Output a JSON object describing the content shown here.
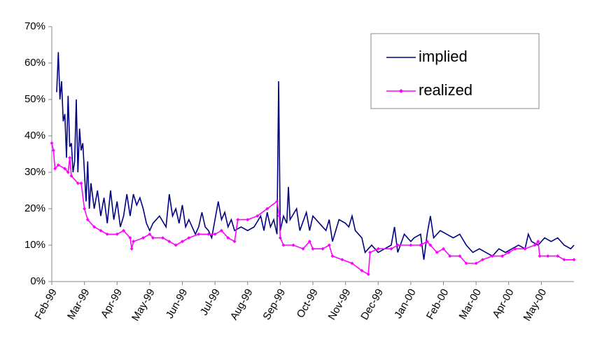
{
  "chart_data": {
    "type": "line",
    "xticks": [
      {
        "value": 0,
        "label": "Feb-99"
      },
      {
        "value": 1,
        "label": "Mar-99"
      },
      {
        "value": 2,
        "label": "Apr-99"
      },
      {
        "value": 3,
        "label": "May-99"
      },
      {
        "value": 4,
        "label": "Jun-99"
      },
      {
        "value": 5,
        "label": "Jul-99"
      },
      {
        "value": 6,
        "label": "Aug-99"
      },
      {
        "value": 7,
        "label": "Sep-99"
      },
      {
        "value": 8,
        "label": "Oct-99"
      },
      {
        "value": 9,
        "label": "Nov-99"
      },
      {
        "value": 10,
        "label": "Dec-99"
      },
      {
        "value": 11,
        "label": "Jan-00"
      },
      {
        "value": 12,
        "label": "Feb-00"
      },
      {
        "value": 13,
        "label": "Mar-00"
      },
      {
        "value": 14,
        "label": "Apr-00"
      },
      {
        "value": 15,
        "label": "May-00"
      }
    ],
    "xlim": [
      0,
      16
    ],
    "ylim": [
      0,
      70
    ],
    "yticks": [
      {
        "value": 0,
        "label": "0%"
      },
      {
        "value": 10,
        "label": "10%"
      },
      {
        "value": 20,
        "label": "20%"
      },
      {
        "value": 30,
        "label": "30%"
      },
      {
        "value": 40,
        "label": "40%"
      },
      {
        "value": 50,
        "label": "50%"
      },
      {
        "value": 60,
        "label": "60%"
      },
      {
        "value": 70,
        "label": "70%"
      }
    ],
    "legend": "top-right",
    "series": [
      {
        "name": "implied",
        "color": "#000080",
        "markers": false,
        "x": [
          0.15,
          0.2,
          0.25,
          0.3,
          0.35,
          0.4,
          0.45,
          0.5,
          0.55,
          0.6,
          0.65,
          0.7,
          0.75,
          0.8,
          0.85,
          0.9,
          0.95,
          1.0,
          1.05,
          1.1,
          1.15,
          1.2,
          1.3,
          1.4,
          1.5,
          1.6,
          1.7,
          1.8,
          1.9,
          2.0,
          2.1,
          2.2,
          2.3,
          2.4,
          2.5,
          2.6,
          2.7,
          2.8,
          2.9,
          3.0,
          3.1,
          3.3,
          3.5,
          3.6,
          3.7,
          3.8,
          3.9,
          4.0,
          4.1,
          4.2,
          4.4,
          4.5,
          4.6,
          4.7,
          4.8,
          4.9,
          5.0,
          5.1,
          5.2,
          5.3,
          5.4,
          5.5,
          5.6,
          5.8,
          6.0,
          6.2,
          6.4,
          6.5,
          6.6,
          6.7,
          6.8,
          6.9,
          6.95,
          7.0,
          7.1,
          7.2,
          7.25,
          7.3,
          7.5,
          7.6,
          7.8,
          7.9,
          8.0,
          8.2,
          8.4,
          8.5,
          8.6,
          8.8,
          9.0,
          9.1,
          9.2,
          9.3,
          9.5,
          9.6,
          9.8,
          10.0,
          10.2,
          10.4,
          10.5,
          10.6,
          10.8,
          11.0,
          11.1,
          11.3,
          11.4,
          11.5,
          11.6,
          11.7,
          11.9,
          12.1,
          12.3,
          12.5,
          12.7,
          12.9,
          13.1,
          13.3,
          13.5,
          13.7,
          13.9,
          14.1,
          14.3,
          14.5,
          14.6,
          14.7,
          14.9,
          15.1,
          15.3,
          15.5,
          15.7,
          15.9,
          16.0
        ],
        "values": [
          52,
          63,
          50,
          55,
          44,
          46,
          34,
          51,
          37,
          38,
          30,
          33,
          50,
          30,
          42,
          36,
          38,
          30,
          22,
          33,
          20,
          27,
          20,
          25,
          18,
          23,
          16,
          25,
          17,
          22,
          15,
          18,
          24,
          18,
          24,
          21,
          23,
          20,
          16,
          14,
          16,
          18,
          15,
          24,
          18,
          20,
          16,
          21,
          15,
          17,
          13,
          15,
          19,
          15,
          14,
          12,
          17,
          22,
          17,
          19,
          15,
          17,
          14,
          15,
          14,
          15,
          18,
          14,
          19,
          15,
          17,
          13,
          55,
          14,
          18,
          16,
          26,
          17,
          20,
          14,
          19,
          14,
          18,
          16,
          14,
          17,
          11,
          17,
          16,
          15,
          18,
          14,
          12,
          8,
          10,
          8,
          9,
          10,
          15,
          8,
          13,
          11,
          12,
          13,
          6,
          13,
          18,
          12,
          14,
          13,
          12,
          13,
          10,
          8,
          9,
          8,
          7,
          9,
          8,
          9,
          10,
          9,
          13,
          11,
          10,
          12,
          11,
          12,
          10,
          9,
          10
        ]
      },
      {
        "name": "realized",
        "color": "#ff00ff",
        "markers": true,
        "x": [
          0,
          0.05,
          0.1,
          0.2,
          0.4,
          0.5,
          0.55,
          0.6,
          0.8,
          0.9,
          1.0,
          1.1,
          1.3,
          1.5,
          1.7,
          2.0,
          2.2,
          2.4,
          2.45,
          2.5,
          2.8,
          3.0,
          3.1,
          3.4,
          3.6,
          3.8,
          4.0,
          4.2,
          4.5,
          4.8,
          5.0,
          5.2,
          5.4,
          5.6,
          5.7,
          6.0,
          6.3,
          6.6,
          6.9,
          6.97,
          7.0,
          7.1,
          7.4,
          7.7,
          7.9,
          8.0,
          8.3,
          8.5,
          8.6,
          8.9,
          9.2,
          9.5,
          9.7,
          9.75,
          10.0,
          10.4,
          10.6,
          11.0,
          11.3,
          11.5,
          11.6,
          11.8,
          12.0,
          12.2,
          12.5,
          12.7,
          13.0,
          13.2,
          13.5,
          13.8,
          14.0,
          14.2,
          14.5,
          14.8,
          14.9,
          14.95,
          15.2,
          15.5,
          15.7,
          16.0
        ],
        "values": [
          38,
          36,
          31,
          32,
          31,
          30,
          34,
          29,
          27,
          27,
          20,
          17,
          15,
          14,
          13,
          13,
          14,
          12,
          9,
          11,
          12,
          13,
          12,
          12,
          11,
          10,
          11,
          12,
          13,
          13,
          13,
          14,
          12,
          11,
          17,
          17,
          18,
          20,
          22,
          18,
          12,
          10,
          10,
          9,
          11,
          9,
          9,
          10,
          7,
          6,
          5,
          3,
          2,
          8,
          9,
          9,
          10,
          10,
          10,
          11,
          10,
          8,
          9,
          7,
          7,
          5,
          5,
          6,
          7,
          7,
          8,
          9,
          9,
          10,
          11,
          7,
          7,
          7,
          6,
          6
        ]
      }
    ]
  }
}
